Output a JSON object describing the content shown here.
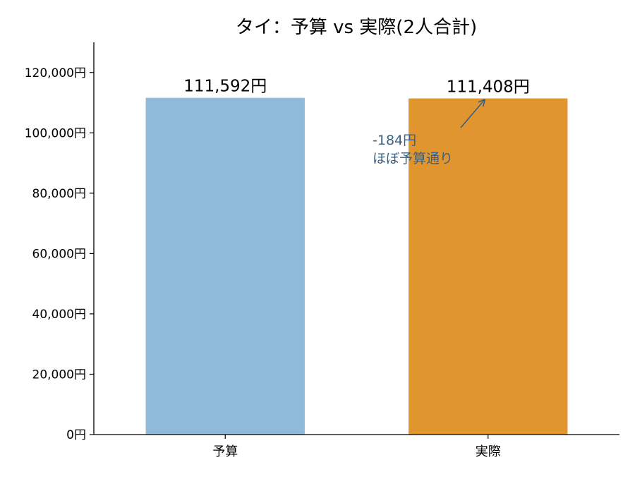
{
  "chart_data": {
    "type": "bar",
    "title": "タイ：予算 vs 実際(2人合計)",
    "xlabel": "",
    "ylabel": "",
    "categories": [
      "予算",
      "実際"
    ],
    "values": [
      111592,
      111408
    ],
    "value_labels": [
      "111,592円",
      "111,408円"
    ],
    "colors": [
      "#8fbad9",
      "#e0952f"
    ],
    "ylim": [
      0,
      130000
    ],
    "yticks": [
      0,
      20000,
      40000,
      60000,
      80000,
      100000,
      120000
    ],
    "ytick_labels": [
      "0円",
      "20,000円",
      "40,000円",
      "60,000円",
      "80,000円",
      "100,000円",
      "120,000円"
    ],
    "grid": false,
    "legend": "none",
    "annotation": {
      "lines": [
        "-184円",
        "ほぼ予算通り"
      ],
      "color": "#3a5f80",
      "arrow_to_value": 111408,
      "arrow_to_category": "実際"
    }
  }
}
